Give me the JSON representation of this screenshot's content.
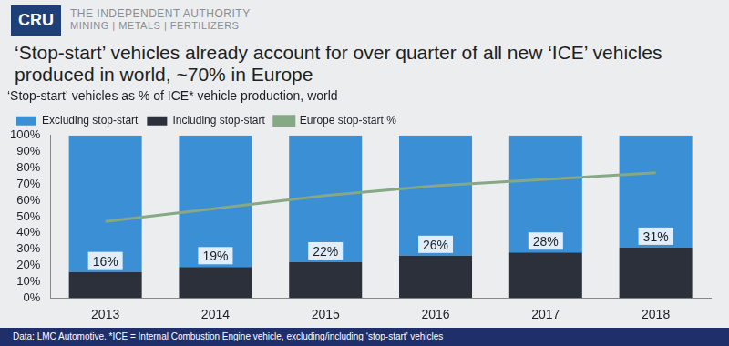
{
  "header": {
    "logo": "CRU",
    "tagline": "THE INDEPENDENT AUTHORITY",
    "sectors": "MINING | METALS | FERTILIZERS"
  },
  "chart_data": {
    "type": "bar",
    "title": "‘Stop-start’ vehicles already account for over quarter of all new ‘ICE’ vehicles produced in world, ~70% in Europe",
    "subtitle": "‘Stop-start’ vehicles as % of ICE* vehicle production, world",
    "source": "Data: LMC Automotive. *ICE = Internal Combustion Engine vehicle, excluding/including ‘stop-start’ vehicles",
    "stacked": true,
    "grid": false,
    "legend": "upper left",
    "data_labels": true,
    "categories": [
      "2013",
      "2014",
      "2015",
      "2016",
      "2017",
      "2018"
    ],
    "series": [
      {
        "name": "Excluding stop-start",
        "type": "bar",
        "color": "#3b8fd4",
        "values": [
          84,
          81,
          78,
          74,
          72,
          69
        ]
      },
      {
        "name": "Including stop-start",
        "type": "bar",
        "color": "#2c303b",
        "values": [
          16,
          19,
          22,
          26,
          28,
          31
        ],
        "value_labels": [
          "16%",
          "19%",
          "22%",
          "26%",
          "28%",
          "31%"
        ]
      },
      {
        "name": "Europe stop-start %",
        "type": "line",
        "color": "#86a886",
        "marker": "none",
        "line_style": "solid",
        "values": [
          47,
          55,
          63,
          69,
          73,
          77
        ]
      }
    ],
    "ylim": [
      0,
      100
    ],
    "yticks": [
      {
        "value": 0,
        "label": "0%"
      },
      {
        "value": 10,
        "label": "10%"
      },
      {
        "value": 20,
        "label": "20%"
      },
      {
        "value": 30,
        "label": "30%"
      },
      {
        "value": 40,
        "label": "40%"
      },
      {
        "value": 50,
        "label": "50%"
      },
      {
        "value": 60,
        "label": "60%"
      },
      {
        "value": 70,
        "label": "70%"
      },
      {
        "value": 80,
        "label": "80%"
      },
      {
        "value": 90,
        "label": "90%"
      },
      {
        "value": 100,
        "label": "100%"
      }
    ]
  }
}
